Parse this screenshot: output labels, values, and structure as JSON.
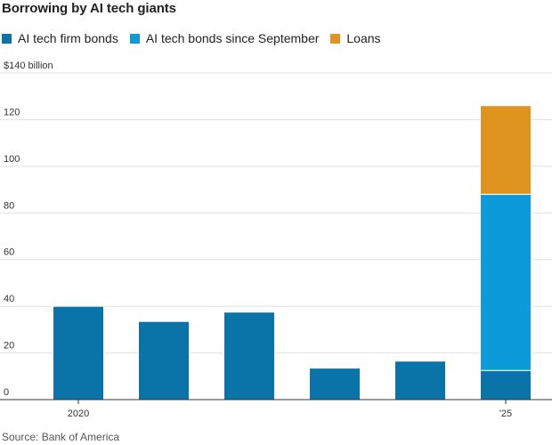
{
  "title": "Borrowing by AI tech giants",
  "legend": [
    {
      "label": "AI tech firm bonds",
      "color": "#0a74a8"
    },
    {
      "label": "AI tech bonds since September",
      "color": "#0c9ad9"
    },
    {
      "label": "Loans",
      "color": "#e09420"
    }
  ],
  "source": "Source: Bank of America",
  "chart_data": {
    "type": "bar",
    "stacked": true,
    "categories": [
      "2020",
      "",
      "",
      "",
      "",
      "'25"
    ],
    "series": [
      {
        "name": "AI tech firm bonds",
        "color": "#0a74a8",
        "values": [
          40,
          33.5,
          37.5,
          13.5,
          16.5,
          12.5
        ]
      },
      {
        "name": "AI tech bonds since September",
        "color": "#0c9ad9",
        "values": [
          0,
          0,
          0,
          0,
          0,
          75.5
        ]
      },
      {
        "name": "Loans",
        "color": "#e09420",
        "values": [
          0,
          0,
          0,
          0,
          0,
          38
        ]
      }
    ],
    "ylim": [
      0,
      140
    ],
    "yticks": [
      0,
      20,
      40,
      60,
      80,
      100,
      120,
      140
    ],
    "ytick_labels": [
      "0",
      "20",
      "40",
      "60",
      "80",
      "100",
      "120",
      "$140 billion"
    ],
    "xtick_labels": [
      "2020",
      "",
      "",
      "",
      "",
      "'25"
    ],
    "grid": true,
    "legend_position": "top-left"
  }
}
